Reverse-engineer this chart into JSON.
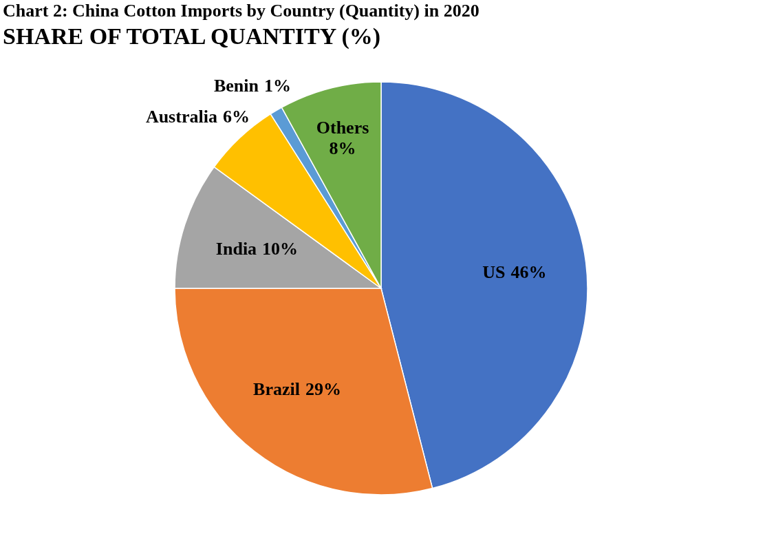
{
  "chart_data": {
    "type": "pie",
    "title": "Chart 2: China Cotton Imports by Country (Quantity) in 2020",
    "subtitle": "SHARE OF TOTAL QUANTITY (%)",
    "categories": [
      "US",
      "Brazil",
      "India",
      "Australia",
      "Benin",
      "Others"
    ],
    "values": [
      46,
      29,
      10,
      6,
      1,
      8
    ],
    "colors": [
      "#4472c4",
      "#ed7d31",
      "#a5a5a5",
      "#ffc000",
      "#5b9bd5",
      "#70ad47"
    ],
    "value_labels": [
      "46%",
      "29%",
      "10%",
      "6%",
      "1%",
      "8%"
    ],
    "legend": false
  }
}
